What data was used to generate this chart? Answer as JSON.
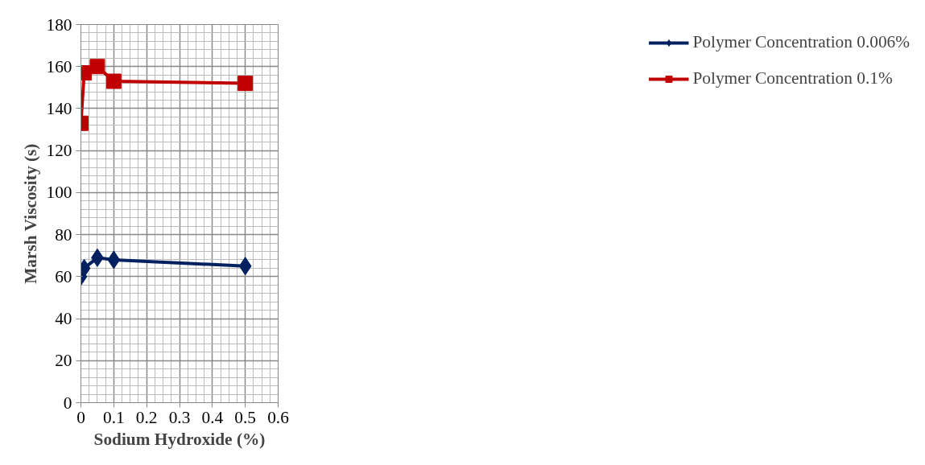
{
  "chart_data": {
    "type": "line",
    "xlabel": "Sodium Hydroxide (%)",
    "ylabel": "Marsh Viscosity (s)",
    "x": [
      0,
      0.01,
      0.05,
      0.1,
      0.5
    ],
    "series": [
      {
        "name": "Polymer Concentration 0.006%",
        "color": "#002060",
        "marker": "diamond",
        "values": [
          60,
          64,
          69,
          68,
          65
        ]
      },
      {
        "name": "Polymer Concentration 0.1%",
        "color": "#c00000",
        "marker": "square",
        "values": [
          133,
          157,
          160,
          153,
          152
        ]
      }
    ],
    "xlim": [
      0,
      0.6
    ],
    "xticks": [
      0,
      0.1,
      0.2,
      0.3,
      0.4,
      0.5,
      0.6
    ],
    "ylim": [
      0,
      180
    ],
    "yticks": [
      0,
      20,
      40,
      60,
      80,
      100,
      120,
      140,
      160,
      180
    ],
    "grid": true,
    "legend": "right",
    "line_style": "solid"
  }
}
